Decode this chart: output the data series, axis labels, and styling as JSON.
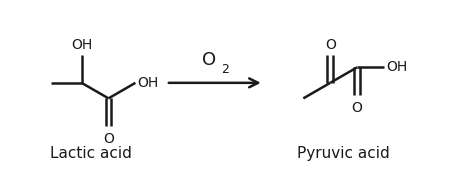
{
  "background_color": "#ffffff",
  "line_color": "#1a1a1a",
  "text_color": "#1a1a1a",
  "lactic_acid_label": "Lactic acid",
  "pyruvic_acid_label": "Pyruvic acid",
  "reagent_label": "O",
  "reagent_subscript": "2",
  "fig_width": 4.74,
  "fig_height": 1.79,
  "dpi": 100,
  "line_width": 1.8,
  "font_size_labels": 11,
  "font_size_reagent": 13
}
